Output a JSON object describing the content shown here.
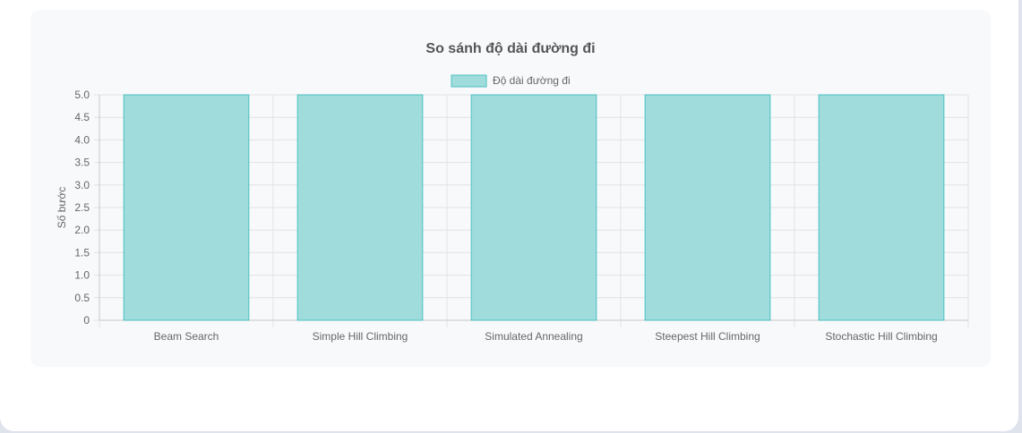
{
  "chart_data": {
    "type": "bar",
    "title": "So sánh độ dài đường đi",
    "ylabel": "Số bước",
    "xlabel": "",
    "categories": [
      "Beam Search",
      "Simple Hill Climbing",
      "Simulated Annealing",
      "Steepest Hill Climbing",
      "Stochastic Hill Climbing"
    ],
    "series": [
      {
        "name": "Độ dài đường đi",
        "values": [
          5,
          5,
          5,
          5,
          5
        ]
      }
    ],
    "ylim": [
      0,
      5
    ],
    "yticks": [
      "0",
      "0.5",
      "1.0",
      "1.5",
      "2.0",
      "2.5",
      "3.0",
      "3.5",
      "4.0",
      "4.5",
      "5.0"
    ],
    "grid": true,
    "legend": "top-center",
    "colors": {
      "bar_fill": "#a0dcdc",
      "bar_stroke": "#4bc0c0",
      "grid": "#e2e2e2"
    }
  }
}
